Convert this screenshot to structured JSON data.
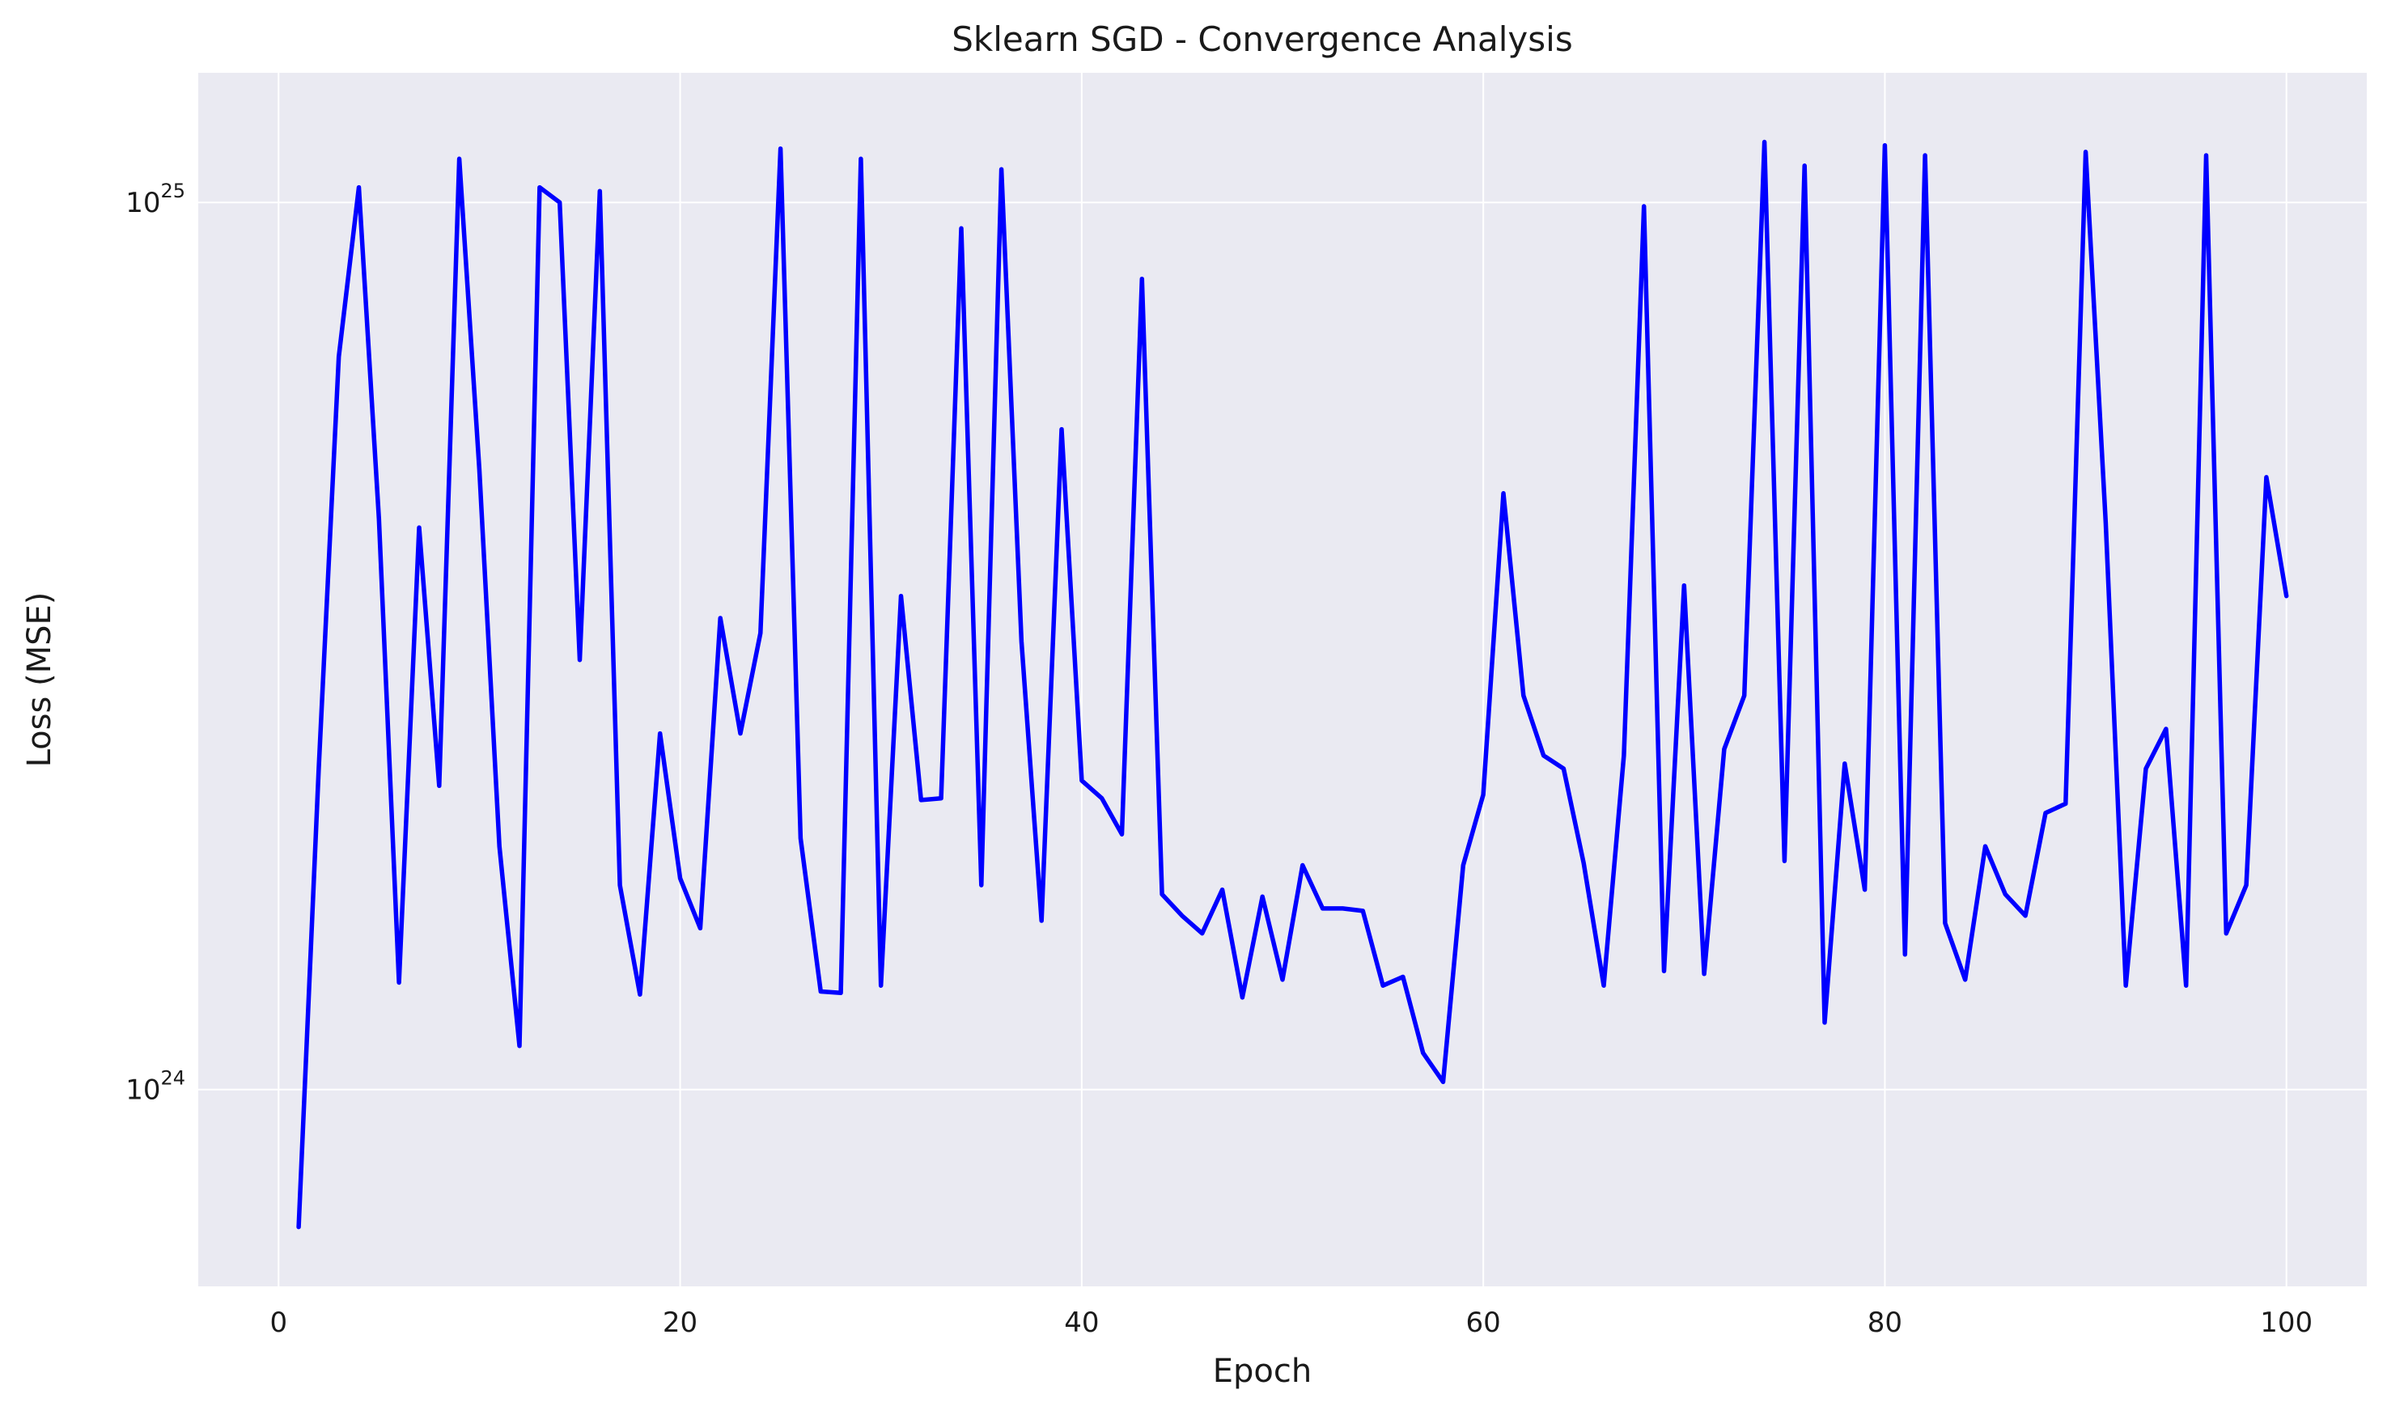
{
  "chart_data": {
    "type": "line",
    "title": "Sklearn SGD - Convergence Analysis",
    "xlabel": "Epoch",
    "ylabel": "Loss (MSE)",
    "xlim": [
      -4,
      104
    ],
    "ylim": [
      6e+23,
      1.4e+25
    ],
    "yscale": "log",
    "grid": true,
    "background_color": "#eaeaf2",
    "grid_color": "#ffffff",
    "x_ticks": [
      {
        "value": 0,
        "label": "0"
      },
      {
        "value": 20,
        "label": "20"
      },
      {
        "value": 40,
        "label": "40"
      },
      {
        "value": 60,
        "label": "60"
      },
      {
        "value": 80,
        "label": "80"
      },
      {
        "value": 100,
        "label": "100"
      }
    ],
    "y_ticks": [
      {
        "value": 1e+24,
        "base": "10",
        "exponent": "24"
      },
      {
        "value": 1e+25,
        "base": "10",
        "exponent": "25"
      }
    ],
    "series": [
      {
        "color": "#0000ff",
        "x": [
          1,
          2,
          3,
          4,
          5,
          6,
          7,
          8,
          9,
          10,
          11,
          12,
          13,
          14,
          15,
          16,
          17,
          18,
          19,
          20,
          21,
          22,
          23,
          24,
          25,
          26,
          27,
          28,
          29,
          30,
          31,
          32,
          33,
          34,
          35,
          36,
          37,
          38,
          39,
          40,
          41,
          42,
          43,
          44,
          45,
          46,
          47,
          48,
          49,
          50,
          51,
          52,
          53,
          54,
          55,
          56,
          57,
          58,
          59,
          60,
          61,
          62,
          63,
          64,
          65,
          66,
          67,
          68,
          69,
          70,
          71,
          72,
          73,
          74,
          75,
          76,
          77,
          78,
          79,
          80,
          81,
          82,
          83,
          84,
          85,
          86,
          87,
          88,
          89,
          90,
          91,
          92,
          93,
          94,
          95,
          96,
          97,
          98,
          99,
          100
        ],
        "values": [
          7e+23,
          2.3e+24,
          6.7e+24,
          1.04e+25,
          4.4e+24,
          1.32e+24,
          4.3e+24,
          2.2e+24,
          1.12e+25,
          5e+24,
          1.88e+24,
          1.12e+24,
          1.04e+25,
          1e+25,
          3.05e+24,
          1.03e+25,
          1.7e+24,
          1.28e+24,
          2.52e+24,
          1.73e+24,
          1.52e+24,
          3.4e+24,
          2.52e+24,
          3.27e+24,
          1.15e+25,
          1.92e+24,
          1.29e+24,
          1.285e+24,
          1.12e+25,
          1.31e+24,
          3.6e+24,
          2.12e+24,
          2.13e+24,
          9.35e+24,
          1.7e+24,
          1.09e+25,
          3.2e+24,
          1.55e+24,
          5.55e+24,
          2.23e+24,
          2.13e+24,
          1.94e+24,
          8.2e+24,
          1.66e+24,
          1.57e+24,
          1.5e+24,
          1.68e+24,
          1.27e+24,
          1.65e+24,
          1.33e+24,
          1.79e+24,
          1.6e+24,
          1.6e+24,
          1.59e+24,
          1.31e+24,
          1.34e+24,
          1.1e+24,
          1.02e+24,
          1.79e+24,
          2.15e+24,
          4.7e+24,
          2.78e+24,
          2.38e+24,
          2.3e+24,
          1.8e+24,
          1.31e+24,
          2.38e+24,
          9.9e+24,
          1.36e+24,
          3.7e+24,
          1.35e+24,
          2.42e+24,
          2.78e+24,
          1.17e+25,
          1.81e+24,
          1.1e+25,
          1.19e+24,
          2.33e+24,
          1.68e+24,
          1.16e+25,
          1.42e+24,
          1.13e+25,
          1.54e+24,
          1.33e+24,
          1.88e+24,
          1.66e+24,
          1.57e+24,
          2.05e+24,
          2.1e+24,
          1.14e+25,
          4.35e+24,
          1.31e+24,
          2.3e+24,
          2.55e+24,
          1.31e+24,
          1.13e+25,
          1.5e+24,
          1.7e+24,
          4.9e+24,
          3.6e+24
        ]
      }
    ]
  }
}
